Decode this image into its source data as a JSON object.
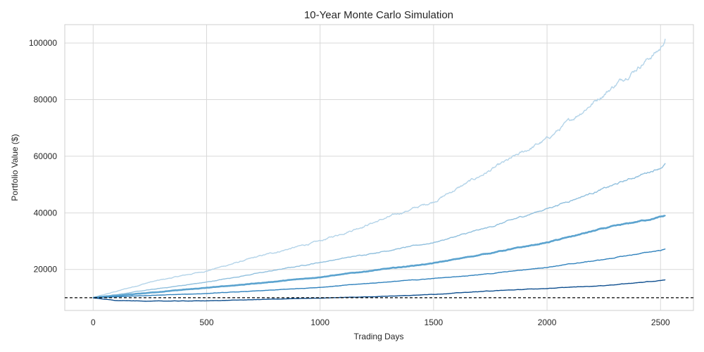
{
  "chart_data": {
    "type": "line",
    "title": "10-Year Monte Carlo Simulation",
    "xlabel": "Trading Days",
    "ylabel": "Portfolio Value ($)",
    "xlim": [
      -125,
      2645
    ],
    "ylim": [
      5500,
      106500
    ],
    "x_ticks": [
      0,
      500,
      1000,
      1500,
      2000,
      2500
    ],
    "y_ticks": [
      20000,
      40000,
      60000,
      80000,
      100000
    ],
    "grid": true,
    "legend": "none",
    "reference_line": {
      "y": 10000,
      "style": "dashed",
      "color": "#000000"
    },
    "series": [
      {
        "color": "#b4d4e9",
        "stroke_width": 1.4,
        "noise": 0.006,
        "x": [
          0,
          250,
          500,
          750,
          1000,
          1250,
          1500,
          1750,
          2000,
          2250,
          2500,
          2520
        ],
        "y": [
          10000,
          15500,
          19500,
          25000,
          30000,
          37000,
          44000,
          55000,
          66000,
          82000,
          98000,
          101500
        ]
      },
      {
        "color": "#91c0de",
        "stroke_width": 1.4,
        "noise": 0.004,
        "x": [
          0,
          250,
          500,
          750,
          1000,
          1250,
          1500,
          1750,
          2000,
          2250,
          2500,
          2520
        ],
        "y": [
          10000,
          12800,
          15500,
          19000,
          22500,
          26000,
          29500,
          35000,
          41500,
          48500,
          56000,
          57200
        ]
      },
      {
        "color": "#5ba3cf",
        "stroke_width": 2.6,
        "noise": 0.003,
        "x": [
          0,
          250,
          500,
          750,
          1000,
          1250,
          1500,
          1750,
          2000,
          2250,
          2500,
          2520
        ],
        "y": [
          10000,
          11800,
          13500,
          15300,
          17300,
          19800,
          22200,
          25800,
          29500,
          34500,
          38500,
          38900
        ]
      },
      {
        "color": "#3182bd",
        "stroke_width": 1.4,
        "noise": 0.003,
        "x": [
          0,
          250,
          500,
          750,
          1000,
          1250,
          1500,
          1750,
          2000,
          2250,
          2500,
          2520
        ],
        "y": [
          10000,
          10800,
          11500,
          12500,
          13700,
          15300,
          16800,
          18500,
          20800,
          23500,
          26800,
          27100
        ]
      },
      {
        "color": "#0f4f8f",
        "stroke_width": 1.4,
        "noise": 0.003,
        "x": [
          0,
          100,
          250,
          500,
          750,
          1000,
          1250,
          1500,
          1750,
          2000,
          2250,
          2500,
          2520
        ],
        "y": [
          10000,
          9000,
          8800,
          8900,
          9400,
          9900,
          10400,
          11200,
          12400,
          13300,
          14300,
          16000,
          16300
        ]
      }
    ]
  }
}
